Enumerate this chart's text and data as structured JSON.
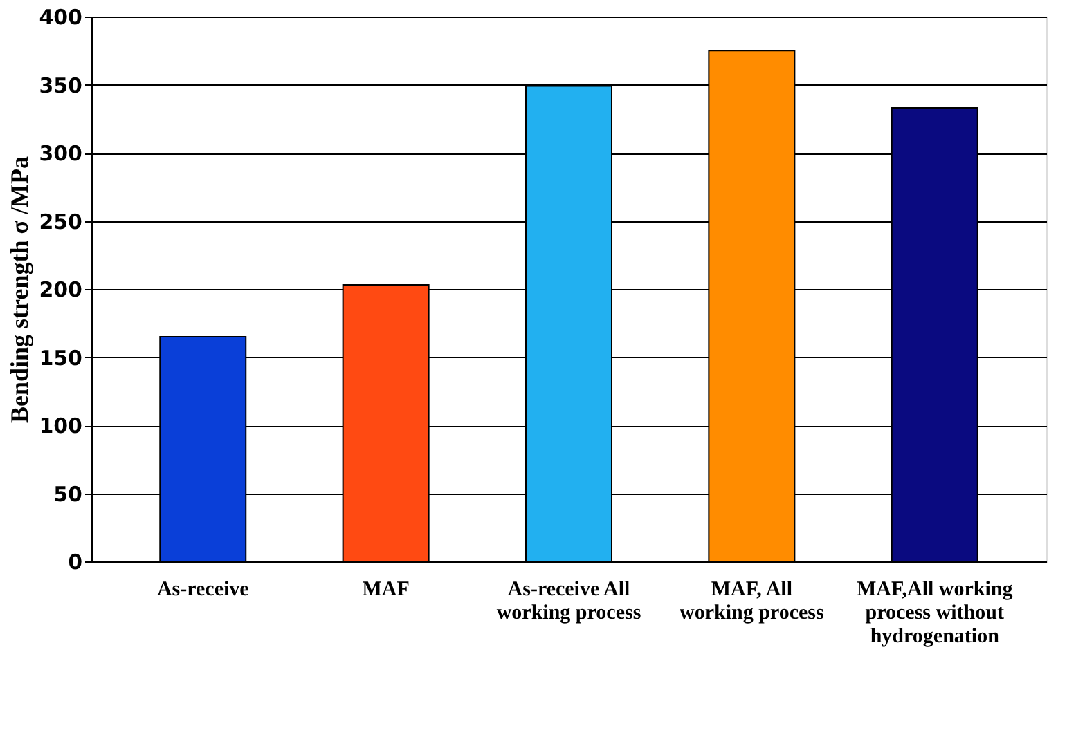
{
  "chart_data": {
    "type": "bar",
    "ylabel": "Bending strength  σ /MPa",
    "categories": [
      "As-receive",
      "MAF",
      "As-receive  All working process",
      "MAF,  All working process",
      "MAF,All working process without hydrogenation"
    ],
    "values": [
      165,
      203,
      349,
      375,
      333
    ],
    "colors": [
      "#0a3fd8",
      "#ff4a12",
      "#22b0f0",
      "#ff8c00",
      "#0a0a80"
    ],
    "ylim": [
      0,
      400
    ],
    "yticks": [
      0,
      50,
      100,
      150,
      200,
      250,
      300,
      350,
      400
    ],
    "grid": "y"
  }
}
